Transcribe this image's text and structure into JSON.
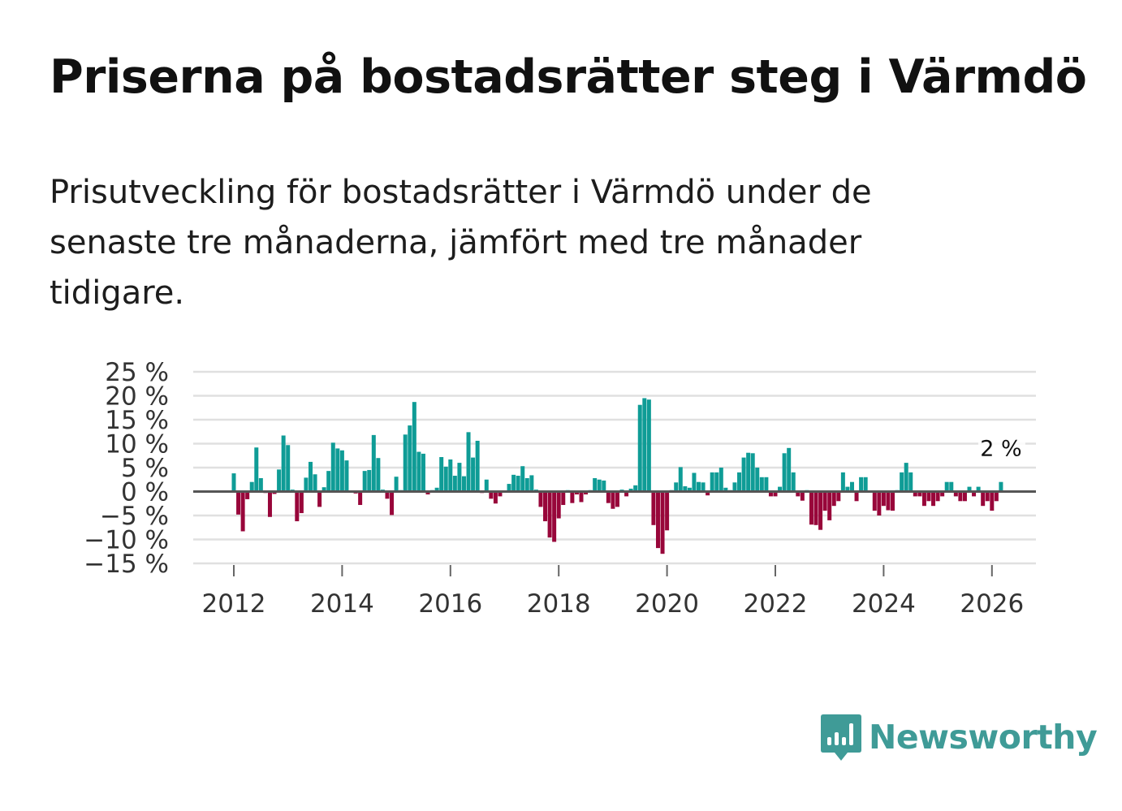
{
  "title": "Priserna på bostadsrätter steg i Värmdö",
  "subtitle": "Prisutveckling för bostadsrätter i Värmdö under de senaste tre månaderna, jämfört med tre månader tidigare.",
  "brand": {
    "name": "Newsworthy",
    "color": "#3f9b97"
  },
  "colors": {
    "positive": "#0f9c96",
    "negative": "#98063a",
    "zero_line": "#555555",
    "grid": "#e0e0e0"
  },
  "chart_data": {
    "type": "bar",
    "title": "Priserna på bostadsrätter steg i Värmdö",
    "xlabel": "",
    "ylabel": "",
    "unit": "%",
    "ylim": [
      -15,
      25
    ],
    "y_ticks": [
      25,
      20,
      15,
      10,
      5,
      0,
      -5,
      -10,
      -15
    ],
    "y_tick_labels": [
      "25 %",
      "20 %",
      "15 %",
      "10 %",
      "5 %",
      "0 %",
      "−5 %",
      "−10 %",
      "−15 %"
    ],
    "x_ticks": [
      2012,
      2014,
      2016,
      2018,
      2020,
      2022,
      2024,
      2026
    ],
    "x_tick_labels": [
      "2012",
      "2014",
      "2016",
      "2018",
      "2020",
      "2022",
      "2024",
      "2026"
    ],
    "start": "2012-01",
    "frequency": "monthly",
    "values": [
      3.8,
      -4.8,
      -8.3,
      -1.6,
      2.0,
      9.2,
      2.8,
      -0.3,
      -5.3,
      -0.5,
      4.6,
      11.7,
      9.7,
      0.4,
      -6.2,
      -4.5,
      2.9,
      6.2,
      3.6,
      -3.2,
      0.9,
      4.3,
      10.2,
      9.0,
      8.6,
      6.5,
      0.1,
      -0.4,
      -2.8,
      4.3,
      4.5,
      11.8,
      7.0,
      0.4,
      -1.5,
      -4.9,
      3.1,
      0.3,
      11.9,
      13.8,
      18.7,
      8.3,
      7.9,
      -0.6,
      0.3,
      0.8,
      7.2,
      5.2,
      6.7,
      3.3,
      6.0,
      3.2,
      12.4,
      7.1,
      10.6,
      -0.3,
      2.5,
      -1.5,
      -2.5,
      -1.0,
      0.1,
      1.6,
      3.5,
      3.3,
      5.3,
      2.8,
      3.4,
      0.4,
      -3.2,
      -6.2,
      -9.6,
      -10.5,
      -5.6,
      -2.8,
      0.3,
      -2.4,
      -0.6,
      -2.2,
      -0.6,
      0.3,
      2.8,
      2.5,
      2.3,
      -2.4,
      -3.6,
      -3.2,
      0.4,
      -1.0,
      0.6,
      1.3,
      18.1,
      19.5,
      19.2,
      -7.0,
      -11.8,
      -13.0,
      -8.1,
      0.3,
      1.9,
      5.1,
      1.1,
      0.8,
      3.9,
      2.0,
      1.9,
      -0.8,
      4.0,
      4.0,
      5.0,
      0.8,
      0.3,
      1.9,
      4.0,
      7.1,
      8.1,
      8.0,
      5.0,
      3.0,
      3.0,
      -1.0,
      -1.0,
      1.0,
      8.0,
      9.1,
      4.0,
      -1.0,
      -1.9,
      0.3,
      -6.9,
      -7.0,
      -8.0,
      -4.0,
      -6.0,
      -3.0,
      -2.0,
      4.0,
      1.0,
      2.0,
      -2.0,
      3.0,
      3.0,
      0.2,
      -4.0,
      -5.0,
      -3.0,
      -3.9,
      -4.0,
      0.3,
      4.0,
      6.0,
      4.0,
      -1.0,
      -1.0,
      -3.0,
      -2.0,
      -3.0,
      -2.0,
      -1.0,
      2.0,
      2.0,
      -1.0,
      -2.0,
      -2.0,
      1.0,
      -1.0,
      1.0,
      -3.0,
      -2.0,
      -4.0,
      -2.0,
      2.0
    ],
    "annotation": {
      "text": "2 %",
      "target": "last"
    }
  }
}
